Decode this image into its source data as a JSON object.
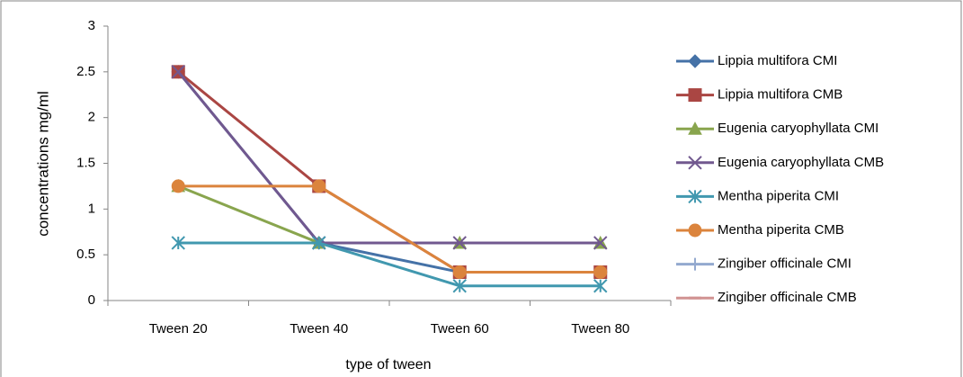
{
  "chart_data": {
    "type": "line",
    "x_label": "type of tween",
    "y_label": "concentrations mg/ml",
    "categories": [
      "Tween 20",
      "Tween 40",
      "Tween 60",
      "Tween 80"
    ],
    "ylim": [
      0,
      3
    ],
    "yticks": [
      0,
      0.5,
      1,
      1.5,
      2,
      2.5,
      3
    ],
    "grid": false,
    "legend": "right",
    "series": [
      {
        "name": "Lippia multifora CMI",
        "color": "#4572a7",
        "marker": "diamond",
        "values": [
          2.5,
          0.63,
          0.31,
          0.31
        ]
      },
      {
        "name": "Lippia multifora CMB",
        "color": "#aa4643",
        "marker": "square",
        "values": [
          2.5,
          1.25,
          0.31,
          0.31
        ]
      },
      {
        "name": "Eugenia caryophyllata CMI",
        "color": "#89a54e",
        "marker": "triangle",
        "values": [
          1.25,
          0.63,
          0.63,
          0.63
        ]
      },
      {
        "name": "Eugenia caryophyllata CMB",
        "color": "#71588f",
        "marker": "x",
        "values": [
          2.5,
          0.63,
          0.63,
          0.63
        ]
      },
      {
        "name": "Mentha piperita CMI",
        "color": "#4198af",
        "marker": "star",
        "values": [
          0.63,
          0.63,
          0.16,
          0.16
        ]
      },
      {
        "name": "Mentha piperita CMB",
        "color": "#db843d",
        "marker": "circle",
        "values": [
          1.25,
          1.25,
          0.31,
          0.31
        ]
      },
      {
        "name": "Zingiber officinale CMI",
        "color": "#93a9cf",
        "marker": "plus",
        "values": [
          null,
          null,
          null,
          null
        ]
      },
      {
        "name": "Zingiber officinale CMB",
        "color": "#d19392",
        "marker": "dash",
        "values": [
          null,
          null,
          null,
          null
        ]
      }
    ]
  }
}
